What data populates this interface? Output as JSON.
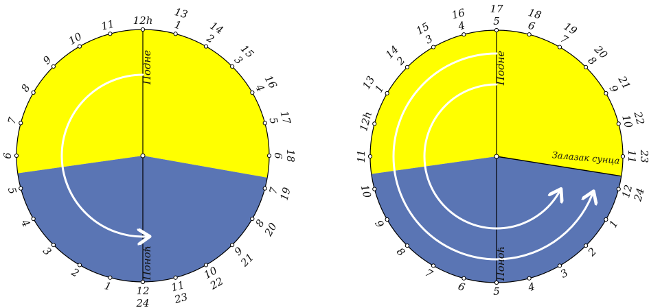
{
  "colors": {
    "day": "#ffff00",
    "night": "#5a75b4",
    "line": "#000000",
    "arrow": "#ffffff",
    "tick_fill": "#ffffff"
  },
  "left_clock": {
    "noon_label": "Подне",
    "midnight_label": "Поноћ",
    "sunset_label": "",
    "outer_labels": [
      "13",
      "14",
      "15",
      "16",
      "17",
      "18",
      "19",
      "20",
      "21",
      "22",
      "23",
      "24"
    ],
    "inner_labels": [
      "12h",
      "1",
      "2",
      "3",
      "4",
      "5",
      "6",
      "7",
      "8",
      "9",
      "10",
      "11",
      "12",
      "1",
      "2",
      "3",
      "4",
      "5",
      "6",
      "7",
      "8",
      "9",
      "10",
      "11"
    ]
  },
  "right_clock": {
    "noon_label": "Подне",
    "midnight_label": "Поноћ",
    "sunset_label": "Залазак сунца",
    "outer_labels": [
      "13",
      "14",
      "15",
      "16",
      "17",
      "18",
      "19",
      "20",
      "21",
      "22",
      "23",
      "24"
    ],
    "inner_labels": [
      "12h",
      "1",
      "2",
      "3",
      "4",
      "5",
      "6",
      "7",
      "8",
      "9",
      "10",
      "11",
      "12",
      "1",
      "2",
      "3",
      "4",
      "5",
      "6",
      "7",
      "8",
      "9",
      "10",
      "11"
    ]
  }
}
